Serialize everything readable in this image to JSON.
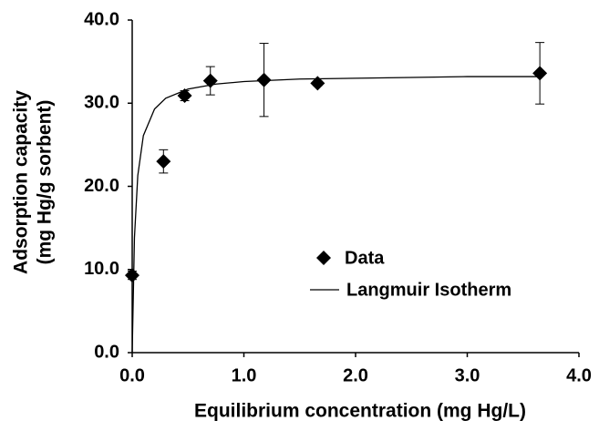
{
  "chart_data": {
    "type": "scatter",
    "x_label": "Equilibrium concentration (mg Hg/L)",
    "y_label": [
      "Adsorption capacity",
      "(mg Hg/g sorbent)"
    ],
    "xlim": [
      0,
      4
    ],
    "ylim": [
      0,
      40
    ],
    "xticks": [
      {
        "value": 0,
        "label": "0.0"
      },
      {
        "value": 1,
        "label": "1.0"
      },
      {
        "value": 2,
        "label": "2.0"
      },
      {
        "value": 3,
        "label": "3.0"
      },
      {
        "value": 4,
        "label": "4.0"
      }
    ],
    "yticks": [
      {
        "value": 0,
        "label": "0.0"
      },
      {
        "value": 10,
        "label": "10.0"
      },
      {
        "value": 20,
        "label": "20.0"
      },
      {
        "value": 30,
        "label": "30.0"
      },
      {
        "value": 40,
        "label": "40.0"
      }
    ],
    "series": [
      {
        "name": "Data",
        "color": "#000000",
        "x": [
          0.0,
          0.28,
          0.47,
          0.7,
          1.18,
          1.66,
          3.65
        ],
        "values": [
          9.3,
          23.0,
          30.9,
          32.7,
          32.8,
          32.4,
          33.6
        ],
        "errors": [
          0.5,
          1.4,
          0.6,
          1.7,
          4.4,
          0.3,
          3.7
        ]
      },
      {
        "name": "Langmuir Isotherm",
        "color": "#000000",
        "x": [
          0,
          0.02,
          0.05,
          0.1,
          0.2,
          0.3,
          0.5,
          0.75,
          1,
          1.5,
          2,
          2.5,
          3,
          3.5,
          3.65
        ],
        "values": [
          0,
          13.8,
          21.3,
          26.1,
          29.3,
          30.6,
          31.7,
          32.3,
          32.6,
          32.9,
          33.0,
          33.1,
          33.2,
          33.2,
          33.2
        ]
      }
    ]
  }
}
